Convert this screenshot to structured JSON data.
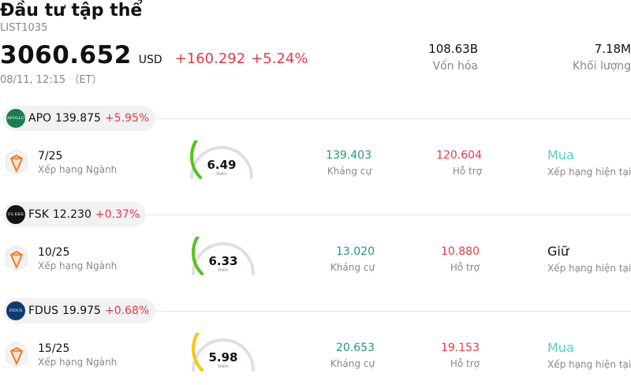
{
  "header": {
    "title": "Đầu tư tập thể",
    "symbol": "LIST1035",
    "price": "3060.652",
    "currency": "USD",
    "change": "+160.292",
    "change_pct": "+5.24%",
    "timestamp": "08/11, 12:15 （ET）"
  },
  "stats": {
    "market_cap": {
      "value": "108.63B",
      "label": "Vốn hóa"
    },
    "volume": {
      "value": "7.18M",
      "label": "Khối lượng"
    }
  },
  "colors": {
    "up_red": "#e8394b",
    "resistance_green": "#1e9b78",
    "buy_teal": "#4fd1c5",
    "gauge_green": "#52c41a",
    "gauge_yellow": "#fac515",
    "gauge_track": "#dcdfe6",
    "rank_orange": "#f07b24"
  },
  "holdings": [
    {
      "ticker": "APO",
      "price": "139.875",
      "change": "+5.95%",
      "logo_text": "APOLLO",
      "logo_color": "#1a7d53",
      "rank": "7/25",
      "rank_label": "Xếp hạng Ngành",
      "score": "6.49",
      "score_value": 6.49,
      "score_label": "Điểm",
      "gauge_color": "#52c41a",
      "resistance": "139.403",
      "resistance_label": "Kháng cự",
      "support": "120.604",
      "support_label": "Hỗ trợ",
      "rating": "Mua",
      "rating_color": "#4fd1c5",
      "rating_label": "Xếp hạng hiện tại"
    },
    {
      "ticker": "FSK",
      "price": "12.230",
      "change": "+0.37%",
      "logo_text": "FS KKR",
      "logo_color": "#141414",
      "rank": "10/25",
      "rank_label": "Xếp hạng Ngành",
      "score": "6.33",
      "score_value": 6.33,
      "score_label": "Điểm",
      "gauge_color": "#52c41a",
      "resistance": "13.020",
      "resistance_label": "Kháng cự",
      "support": "10.880",
      "support_label": "Hỗ trợ",
      "rating": "Giữ",
      "rating_color": "#111111",
      "rating_label": "Xếp hạng hiện tại"
    },
    {
      "ticker": "FDUS",
      "price": "19.975",
      "change": "+0.68%",
      "logo_text": "FIDUS",
      "logo_color": "#0d3b73",
      "rank": "15/25",
      "rank_label": "Xếp hạng Ngành",
      "score": "5.98",
      "score_value": 5.98,
      "score_label": "Điểm",
      "gauge_color": "#fac515",
      "resistance": "20.653",
      "resistance_label": "Kháng cự",
      "support": "19.153",
      "support_label": "Hỗ trợ",
      "rating": "Mua",
      "rating_color": "#4fd1c5",
      "rating_label": "Xếp hạng hiện tại"
    }
  ]
}
